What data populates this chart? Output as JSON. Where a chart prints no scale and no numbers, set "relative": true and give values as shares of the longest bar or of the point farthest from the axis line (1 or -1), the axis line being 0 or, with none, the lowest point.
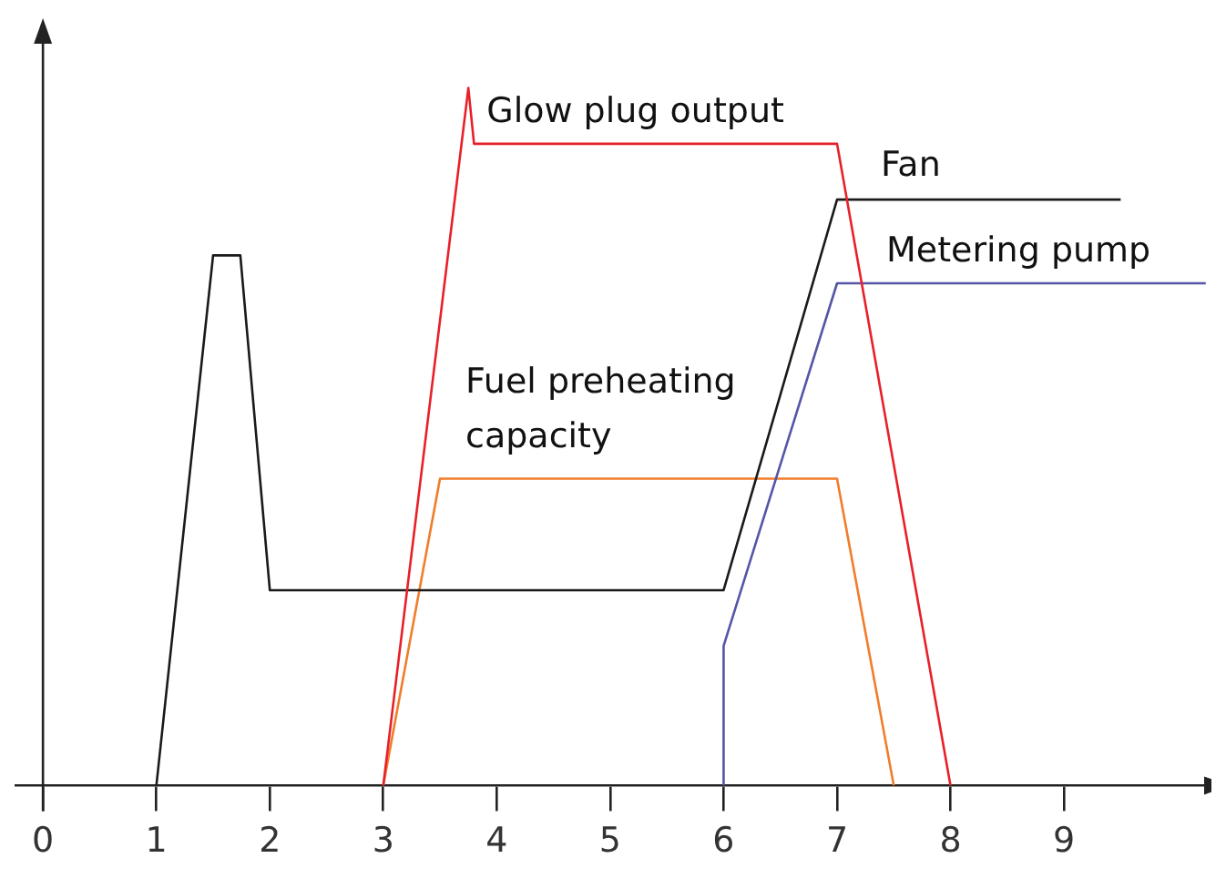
{
  "chart_data": {
    "type": "line",
    "relative": true,
    "xlim": [
      -0.25,
      10.3
    ],
    "xticks": [
      0,
      1,
      2,
      3,
      4,
      5,
      6,
      7,
      8,
      9
    ],
    "series": [
      {
        "name": "Glow plug output",
        "color": "#e8202a",
        "x": [
          3,
          3.75,
          3.8,
          7,
          8
        ],
        "values": [
          0,
          1,
          0.92,
          0.92,
          0
        ]
      },
      {
        "name": "Fan",
        "color": "#1a1a1a",
        "x": [
          1,
          1.5,
          1.74,
          2,
          6,
          7,
          9.5
        ],
        "values": [
          0,
          0.76,
          0.76,
          0.28,
          0.28,
          0.84,
          0.84
        ]
      },
      {
        "name": "Metering pump",
        "color": "#5555a8",
        "x": [
          6,
          6,
          7,
          10.25
        ],
        "values": [
          0,
          0.2,
          0.72,
          0.72
        ]
      },
      {
        "name": "Fuel preheating capacity",
        "color": "#f07d2a",
        "x": [
          3,
          3.5,
          7,
          7.5
        ],
        "values": [
          0,
          0.44,
          0.44,
          0
        ]
      }
    ]
  }
}
